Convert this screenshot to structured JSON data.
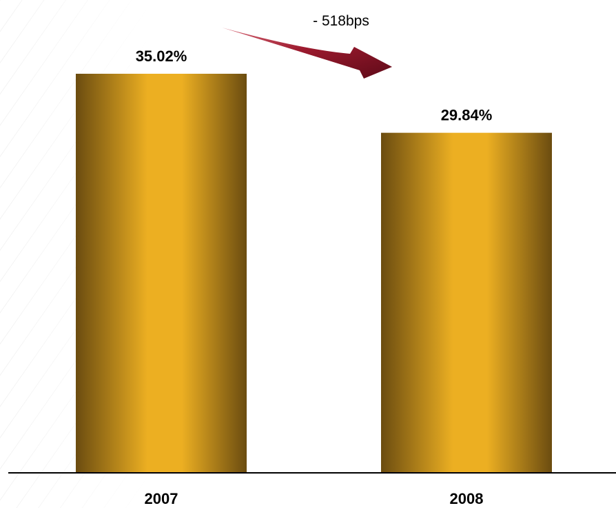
{
  "chart_data": {
    "type": "bar",
    "categories": [
      "2007",
      "2008"
    ],
    "values": [
      35.02,
      29.84
    ],
    "value_labels": [
      "35.02%",
      "29.84%"
    ],
    "ylim": [
      0,
      35.02
    ],
    "grid": false,
    "annotation": "- 518bps"
  },
  "colors": {
    "bar_center": "#ecaf22",
    "bar_edge": "#6b4c10",
    "arrow": "#9c1a2e",
    "axis": "#000000"
  }
}
